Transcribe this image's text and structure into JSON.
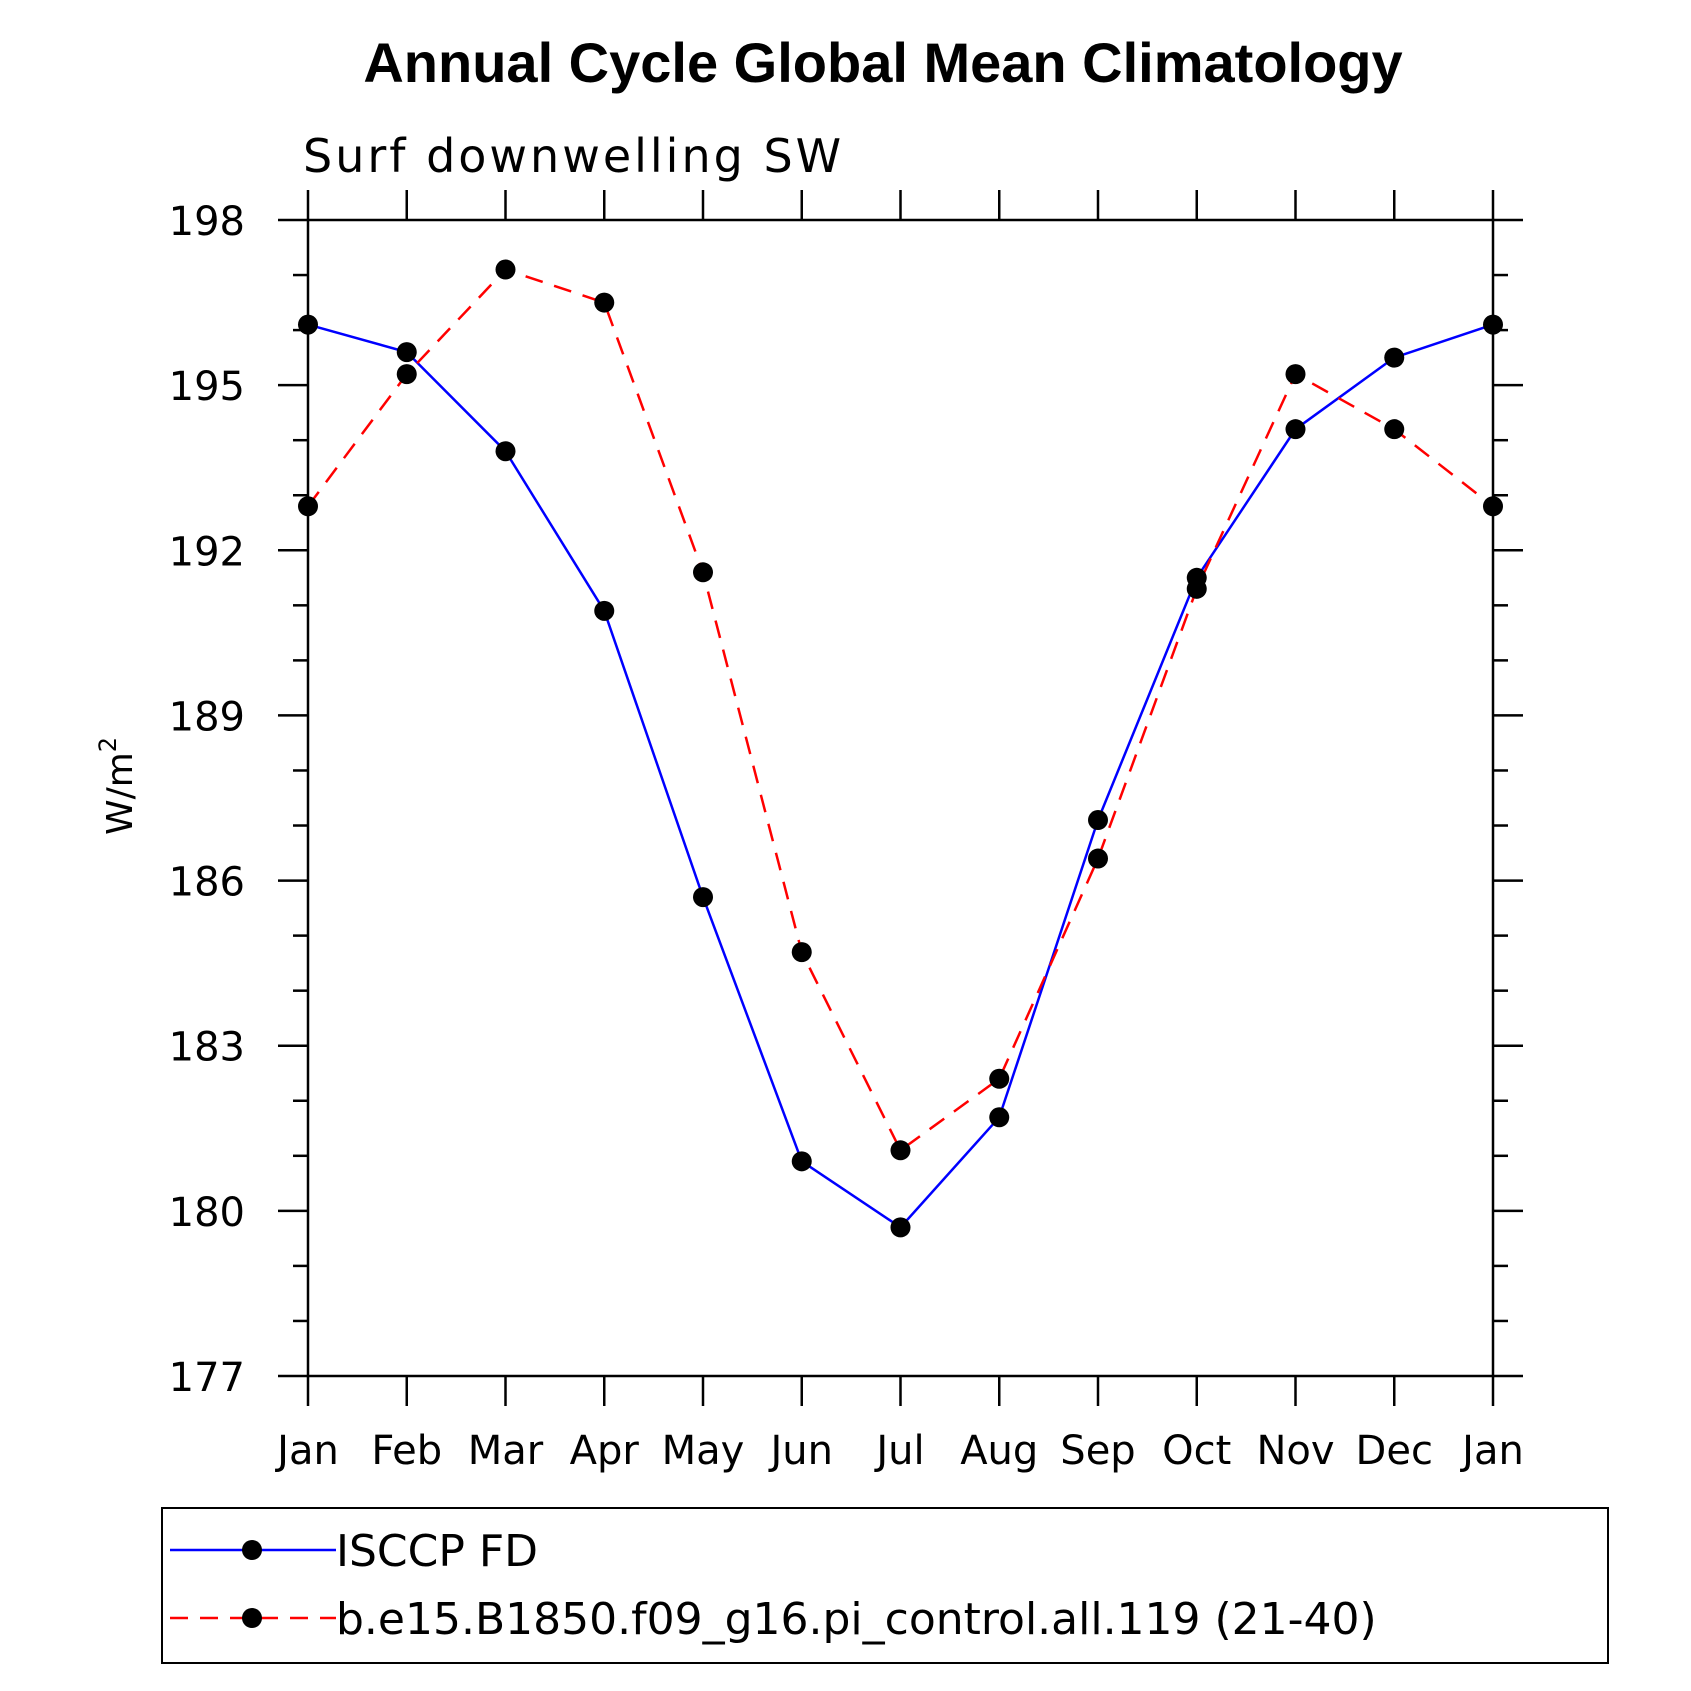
{
  "chart_data": {
    "type": "line",
    "title": "Annual Cycle Global Mean Climatology",
    "subtitle": "Surf downwelling SW",
    "xlabel": "",
    "ylabel": "W/m",
    "ylabel_superscript": "2",
    "categories": [
      "Jan",
      "Feb",
      "Mar",
      "Apr",
      "May",
      "Jun",
      "Jul",
      "Aug",
      "Sep",
      "Oct",
      "Nov",
      "Dec",
      "Jan"
    ],
    "ylim": [
      177,
      198
    ],
    "yticks": [
      177,
      180,
      183,
      186,
      189,
      192,
      195,
      198
    ],
    "series": [
      {
        "name": "ISCCP FD",
        "color": "#0000ff",
        "dash": "solid",
        "values": [
          196.1,
          195.6,
          193.8,
          190.9,
          185.7,
          180.9,
          179.7,
          181.7,
          187.1,
          191.5,
          194.2,
          195.5,
          196.1
        ]
      },
      {
        "name": "b.e15.B1850.f09_g16.pi_control.all.119 (21-40)",
        "color": "#ff0000",
        "dash": "dashed",
        "values": [
          192.8,
          195.2,
          197.1,
          196.5,
          191.6,
          184.7,
          181.1,
          182.4,
          186.4,
          191.3,
          195.2,
          194.2,
          192.8
        ]
      }
    ]
  }
}
